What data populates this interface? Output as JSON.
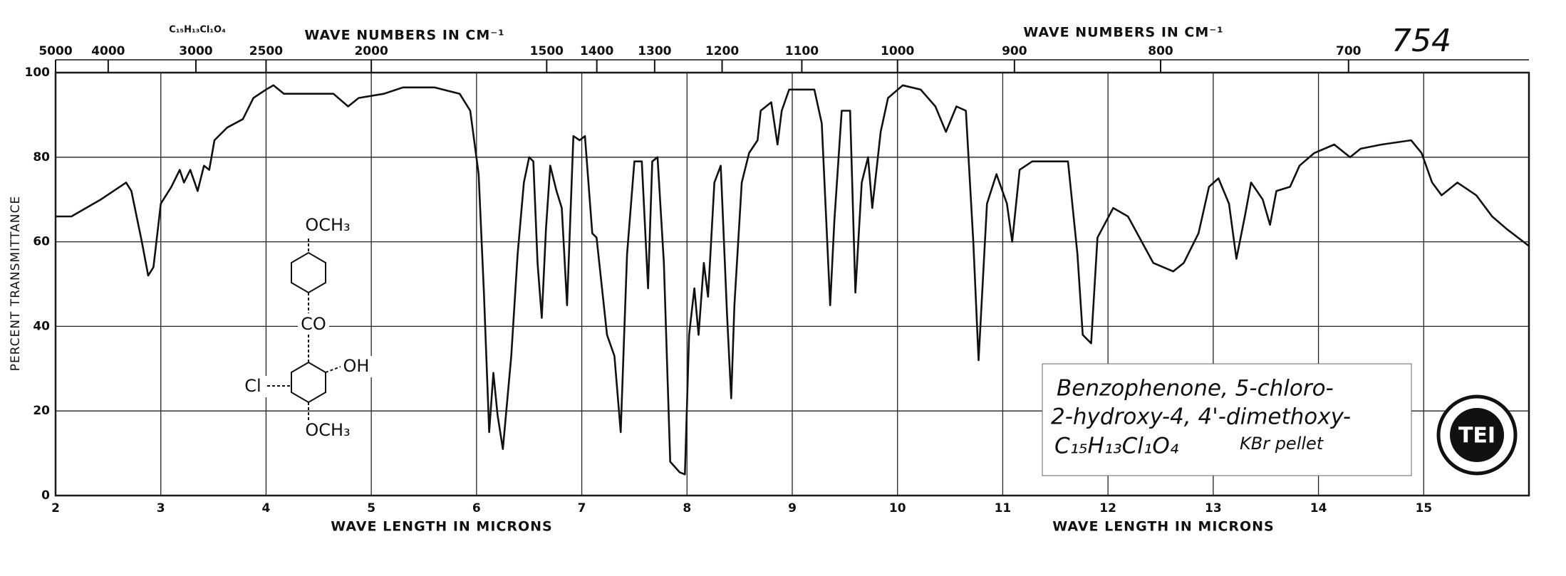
{
  "chart_data": {
    "type": "line",
    "title": "Benzophenone, 5-chloro-",
    "subtitle": "2-hydroxy-4, 4'-dimethoxy-",
    "formula": "C₁₅H₁₃Cl₁O₄",
    "sample": "KBr pellet",
    "top_formula": "C₁₅H₁₃Cl₁O₄",
    "spectrum_number": "754",
    "xlabel": "WAVE LENGTH IN MICRONS",
    "x2label": "WAVE NUMBERS IN CM⁻¹",
    "ylabel": "PERCENT TRANSMITTANCE",
    "structure_labels": [
      "OCH₃",
      "CO",
      "OH",
      "Cl",
      "OCH₃"
    ],
    "logo": "TEI",
    "color": "#111111",
    "grid": true,
    "xlim": [
      2,
      16
    ],
    "ylim": [
      0,
      100
    ],
    "xticks": [
      2,
      3,
      4,
      5,
      6,
      7,
      8,
      9,
      10,
      11,
      12,
      13,
      14,
      15
    ],
    "x2ticks": [
      5000,
      4000,
      3000,
      2500,
      2000,
      1500,
      1400,
      1300,
      1200,
      1100,
      1000,
      900,
      800,
      700
    ],
    "yticks": [
      0,
      20,
      40,
      60,
      80,
      100
    ],
    "x": [
      2.0,
      2.15,
      2.43,
      2.67,
      2.72,
      2.82,
      2.88,
      2.93,
      3.0,
      3.1,
      3.18,
      3.22,
      3.28,
      3.35,
      3.41,
      3.46,
      3.51,
      3.63,
      3.78,
      3.88,
      4.0,
      4.07,
      4.17,
      4.64,
      4.78,
      4.88,
      5.12,
      5.3,
      5.6,
      5.84,
      5.94,
      6.02,
      6.07,
      6.12,
      6.16,
      6.2,
      6.25,
      6.33,
      6.39,
      6.45,
      6.5,
      6.54,
      6.58,
      6.62,
      6.66,
      6.7,
      6.76,
      6.81,
      6.86,
      6.92,
      6.98,
      7.03,
      7.1,
      7.14,
      7.24,
      7.31,
      7.37,
      7.43,
      7.5,
      7.57,
      7.63,
      7.67,
      7.72,
      7.78,
      7.84,
      7.93,
      7.98,
      8.02,
      8.07,
      8.11,
      8.16,
      8.2,
      8.26,
      8.32,
      8.38,
      8.42,
      8.45,
      8.52,
      8.59,
      8.67,
      8.7,
      8.8,
      8.86,
      8.9,
      8.97,
      9.21,
      9.28,
      9.36,
      9.4,
      9.47,
      9.55,
      9.6,
      9.66,
      9.72,
      9.76,
      9.84,
      9.91,
      10.05,
      10.22,
      10.36,
      10.46,
      10.56,
      10.65,
      10.72,
      10.77,
      10.85,
      10.94,
      11.04,
      11.09,
      11.16,
      11.28,
      11.62,
      11.71,
      11.76,
      11.84,
      11.9,
      12.05,
      12.19,
      12.43,
      12.62,
      12.72,
      12.86,
      12.96,
      13.05,
      13.15,
      13.22,
      13.3,
      13.36,
      13.47,
      13.54,
      13.6,
      13.73,
      13.82,
      13.96,
      14.15,
      14.3,
      14.4,
      14.6,
      14.88,
      14.98,
      15.08,
      15.17,
      15.32,
      15.5,
      15.65,
      15.79,
      16.0
    ],
    "values": [
      66,
      66,
      70,
      74,
      72,
      60,
      52,
      54,
      69,
      73,
      77,
      74,
      77,
      72,
      78,
      77,
      84,
      87,
      89,
      94,
      96,
      97,
      95,
      95,
      92,
      94,
      95,
      96.5,
      96.5,
      95,
      91,
      76,
      48,
      15,
      29,
      19,
      11,
      33,
      57,
      74,
      80,
      79,
      55,
      42,
      63,
      78,
      72,
      68,
      45,
      85,
      84,
      85,
      62,
      61,
      38,
      33,
      15,
      57,
      79,
      79,
      49,
      79,
      80,
      55,
      8,
      5.5,
      5,
      38,
      49,
      38,
      55,
      47,
      74,
      78,
      43,
      23,
      45,
      74,
      81,
      84,
      91,
      93,
      83,
      91,
      96,
      96,
      88,
      45,
      65,
      91,
      91,
      48,
      74,
      80,
      68,
      86,
      94,
      97,
      96,
      92,
      86,
      92,
      91,
      60,
      32,
      69,
      76,
      69,
      60,
      77,
      79,
      79,
      57,
      38,
      36,
      61,
      68,
      66,
      55,
      53,
      55,
      62,
      73,
      75,
      69,
      56,
      66,
      74,
      70,
      64,
      72,
      73,
      78,
      81,
      83,
      80,
      82,
      83,
      84,
      81,
      74,
      71,
      74,
      71,
      66,
      63,
      59
    ]
  }
}
